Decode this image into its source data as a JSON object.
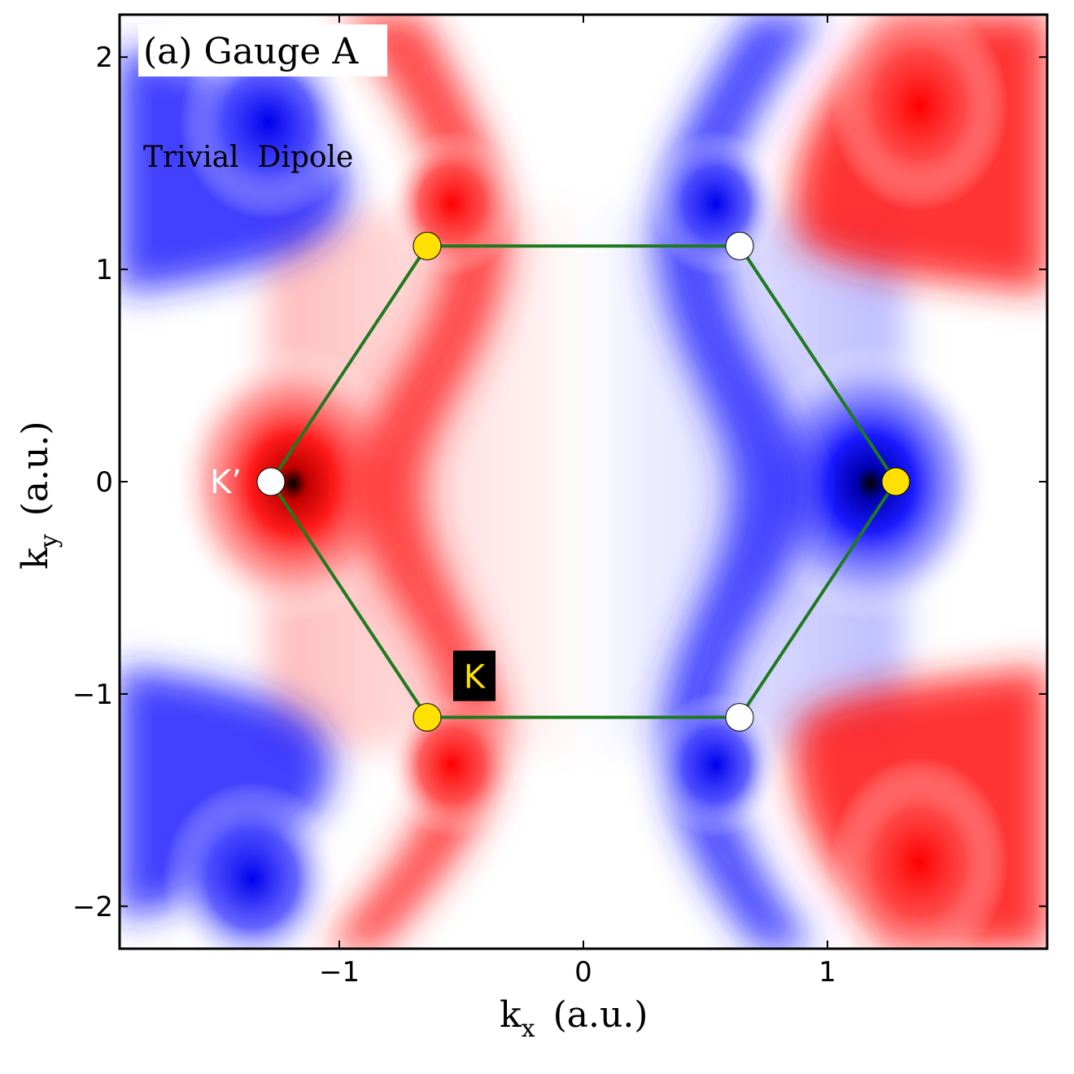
{
  "chart_data": {
    "type": "heatmap",
    "title": "(a) Gauge A",
    "annotation": "Trivial  Dipole",
    "xlabel": "k",
    "xlabel_sub": "x",
    "xlabel_unit": "(a.u.)",
    "ylabel": "k",
    "ylabel_sub": "y",
    "ylabel_unit": "(a.u.)",
    "xlim": [
      -1.9,
      1.9
    ],
    "ylim": [
      -2.2,
      2.2
    ],
    "x_ticks": [
      {
        "value": -1,
        "label": "−1"
      },
      {
        "value": 0,
        "label": "0"
      },
      {
        "value": 1,
        "label": "1"
      }
    ],
    "y_ticks": [
      {
        "value": -2,
        "label": "−2"
      },
      {
        "value": -1,
        "label": "−1"
      },
      {
        "value": 0,
        "label": "0"
      },
      {
        "value": 1,
        "label": "1"
      },
      {
        "value": 2,
        "label": "2"
      }
    ],
    "colormap": {
      "negative": "#0000ff",
      "zero": "#ffffff",
      "positive": "#ff0000",
      "extreme": "#000000"
    },
    "brillouin_zone": {
      "color": "#1f7a1f",
      "vertices": [
        {
          "x": -0.64,
          "y": 1.11,
          "kind": "K"
        },
        {
          "x": 0.64,
          "y": 1.11,
          "kind": "K'"
        },
        {
          "x": 1.28,
          "y": 0.0,
          "kind": "K"
        },
        {
          "x": 0.64,
          "y": -1.11,
          "kind": "K'"
        },
        {
          "x": -0.64,
          "y": -1.11,
          "kind": "K"
        },
        {
          "x": -1.28,
          "y": 0.0,
          "kind": "K'"
        }
      ]
    },
    "point_colors": {
      "K": "#ffe000",
      "K'": "#ffffff"
    },
    "point_labels": [
      {
        "text": "K’",
        "color": "#ffffff",
        "background": "",
        "at": "K'-left"
      },
      {
        "text": "K",
        "color": "#ffe000",
        "background": "#000000",
        "at": "K-bottom-left"
      }
    ]
  }
}
